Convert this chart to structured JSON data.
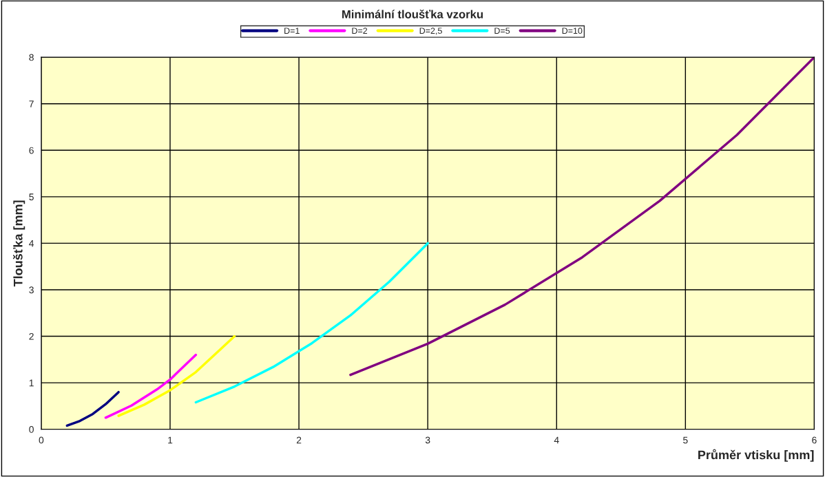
{
  "chart_data": {
    "type": "line",
    "title": "Minimální tloušťka vzorku",
    "xlabel": "Průměr vtisku [mm]",
    "ylabel": "Tloušťka [mm]",
    "series": [
      {
        "name": "D=1",
        "color": "#000080",
        "x": [
          0.2,
          0.3,
          0.4,
          0.5,
          0.6
        ],
        "values": [
          0.08,
          0.18,
          0.33,
          0.54,
          0.8
        ]
      },
      {
        "name": "D=2",
        "color": "#ff00ff",
        "x": [
          0.5,
          0.7,
          0.9,
          1.0,
          1.2
        ],
        "values": [
          0.25,
          0.51,
          0.86,
          1.07,
          1.6
        ]
      },
      {
        "name": "D=2,5",
        "color": "#ffff00",
        "x": [
          0.6,
          0.8,
          1.0,
          1.2,
          1.5
        ],
        "values": [
          0.29,
          0.53,
          0.84,
          1.23,
          2.0
        ]
      },
      {
        "name": "D=5",
        "color": "#00ffff",
        "x": [
          1.2,
          1.5,
          1.8,
          2.1,
          2.4,
          2.7,
          3.0
        ],
        "values": [
          0.58,
          0.92,
          1.34,
          1.85,
          2.45,
          3.17,
          4.0
        ]
      },
      {
        "name": "D=10",
        "color": "#800080",
        "x": [
          2.4,
          3.0,
          3.6,
          4.2,
          4.8,
          5.4,
          6.0
        ],
        "values": [
          1.17,
          1.84,
          2.68,
          3.7,
          4.91,
          6.33,
          8.0
        ]
      }
    ],
    "xlim": [
      0,
      6
    ],
    "xticks": [
      0,
      1,
      2,
      3,
      4,
      5,
      6
    ],
    "ylim": [
      0,
      8
    ],
    "yticks": [
      0,
      1,
      2,
      3,
      4,
      5,
      6,
      7,
      8
    ],
    "grid": true,
    "legend": "top",
    "marker": "none",
    "line_style": "solid"
  }
}
